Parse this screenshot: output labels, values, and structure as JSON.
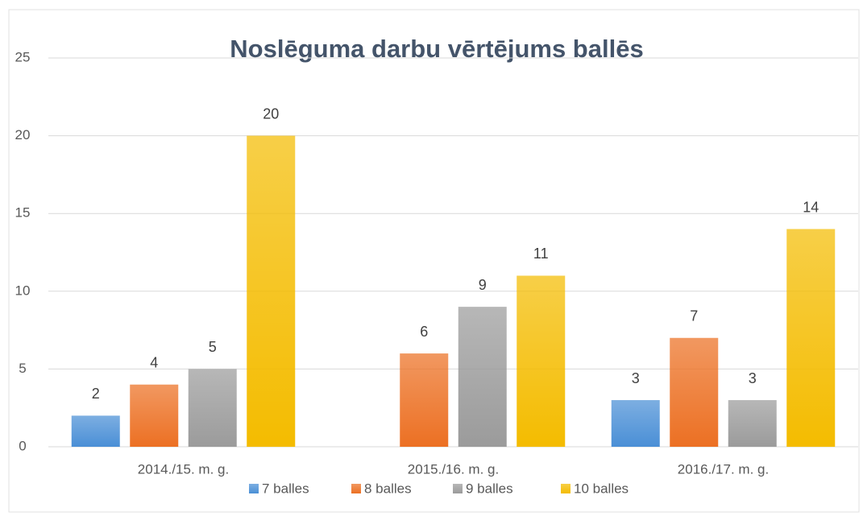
{
  "chart_data": {
    "type": "bar",
    "title": "Noslēguma darbu vērtējums ballēs",
    "categories": [
      "2014./15. m. g.",
      "2015./16. m. g.",
      "2016./17. m. g."
    ],
    "series": [
      {
        "name": "7 balles",
        "color": "#4a8fd6",
        "values": [
          2,
          null,
          3
        ]
      },
      {
        "name": "8 balles",
        "color": "#ec7023",
        "values": [
          4,
          6,
          7
        ]
      },
      {
        "name": "9 balles",
        "color": "#9b9b9b",
        "values": [
          5,
          9,
          3
        ]
      },
      {
        "name": "10 balles",
        "color": "#f4bc00",
        "values": [
          20,
          11,
          14
        ]
      }
    ],
    "ylim": [
      0,
      25
    ],
    "yticks": [
      0,
      5,
      10,
      15,
      20,
      25
    ],
    "grid": true,
    "legend": "bottom"
  }
}
